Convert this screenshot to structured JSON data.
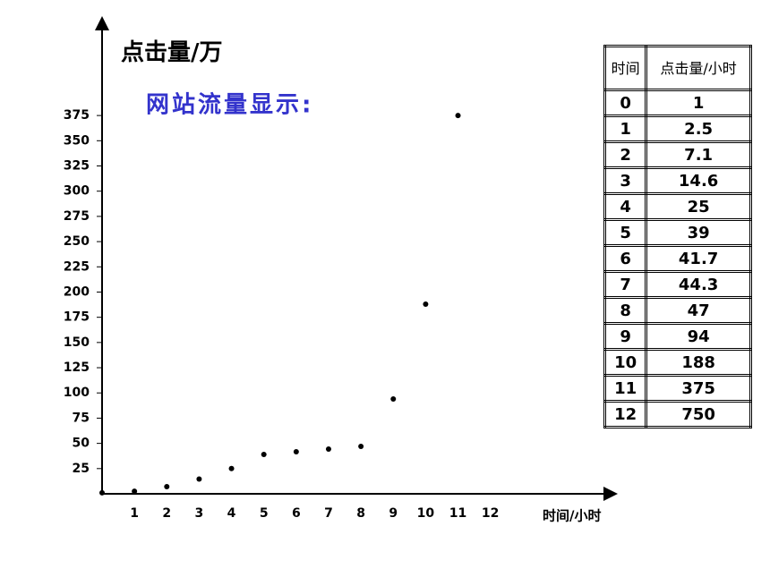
{
  "chart_data": {
    "type": "scatter",
    "title": "网站流量显示:",
    "y_label": "点击量/万",
    "x_label": "时间/小时",
    "x": [
      0,
      1,
      2,
      3,
      4,
      5,
      6,
      7,
      8,
      9,
      10,
      11
    ],
    "values": [
      1,
      2.5,
      7.1,
      14.6,
      25,
      39,
      41.7,
      44.3,
      47,
      94,
      188,
      375
    ],
    "color": "#000000",
    "xlim": [
      0,
      15.8
    ],
    "xticks": [
      1,
      2,
      3,
      4,
      5,
      6,
      7,
      8,
      9,
      10,
      11,
      12
    ],
    "ylim": [
      0,
      470
    ],
    "yticks": [
      25,
      50,
      75,
      100,
      125,
      150,
      175,
      200,
      225,
      250,
      275,
      300,
      325,
      350,
      375
    ],
    "grid": false
  },
  "table": {
    "header": [
      "时间",
      "点击量/小时"
    ],
    "rows": [
      [
        0,
        1
      ],
      [
        1,
        2.5
      ],
      [
        2,
        7.1
      ],
      [
        3,
        14.6
      ],
      [
        4,
        25
      ],
      [
        5,
        39
      ],
      [
        6,
        41.7
      ],
      [
        7,
        44.3
      ],
      [
        8,
        47
      ],
      [
        9,
        94
      ],
      [
        10,
        188
      ],
      [
        11,
        375
      ],
      [
        12,
        750
      ]
    ]
  }
}
